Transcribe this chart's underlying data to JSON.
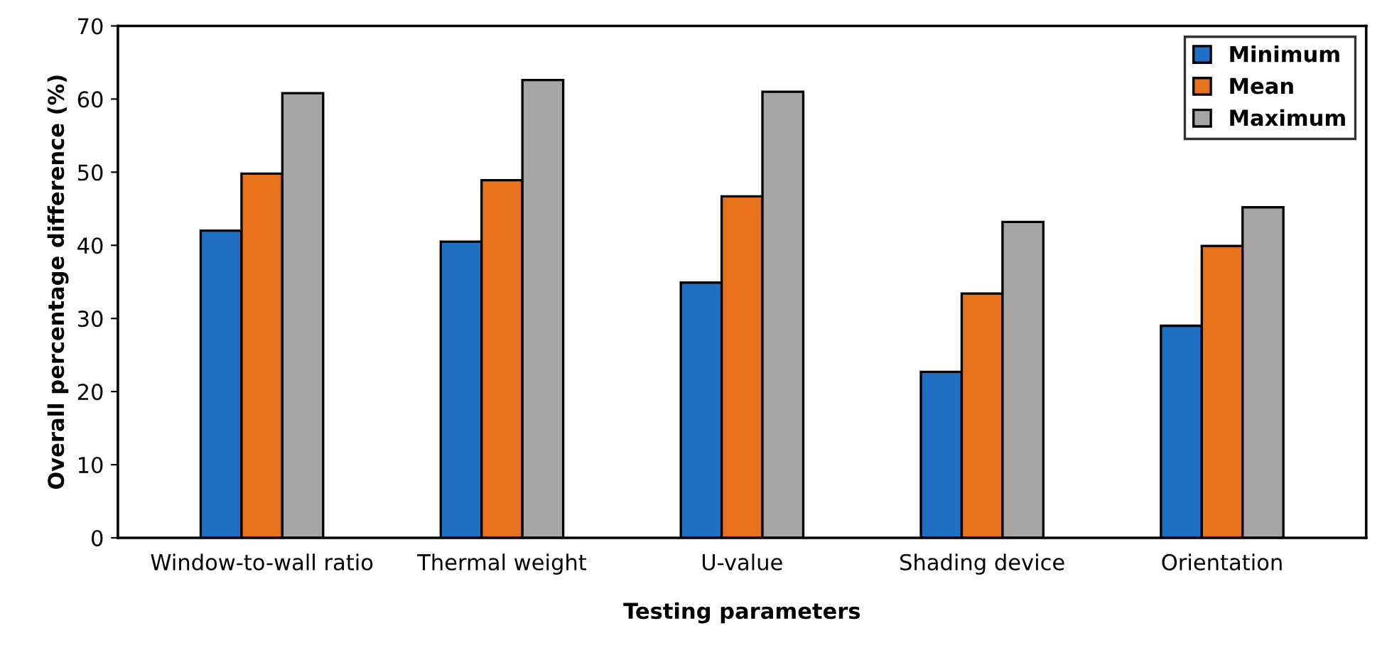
{
  "chart_data": {
    "type": "bar",
    "xlabel": "Testing parameters",
    "ylabel": "Overall percentage difference (%)",
    "categories": [
      "Window-to-wall ratio",
      "Thermal weight",
      "U-value",
      "Shading device",
      "Orientation"
    ],
    "series": [
      {
        "name": "Minimum",
        "color": "#1f6fc5",
        "values": [
          42.0,
          40.5,
          34.9,
          22.7,
          29.0
        ]
      },
      {
        "name": "Mean",
        "color": "#e8711c",
        "values": [
          49.8,
          48.9,
          46.7,
          33.4,
          39.9
        ]
      },
      {
        "name": "Maximum",
        "color": "#a6a6a6",
        "values": [
          60.8,
          62.6,
          61.0,
          43.2,
          45.2
        ]
      }
    ],
    "ylim": [
      0,
      70
    ],
    "yticks": [
      0,
      10,
      20,
      30,
      40,
      50,
      60,
      70
    ],
    "grid": false,
    "legend": "top right"
  }
}
